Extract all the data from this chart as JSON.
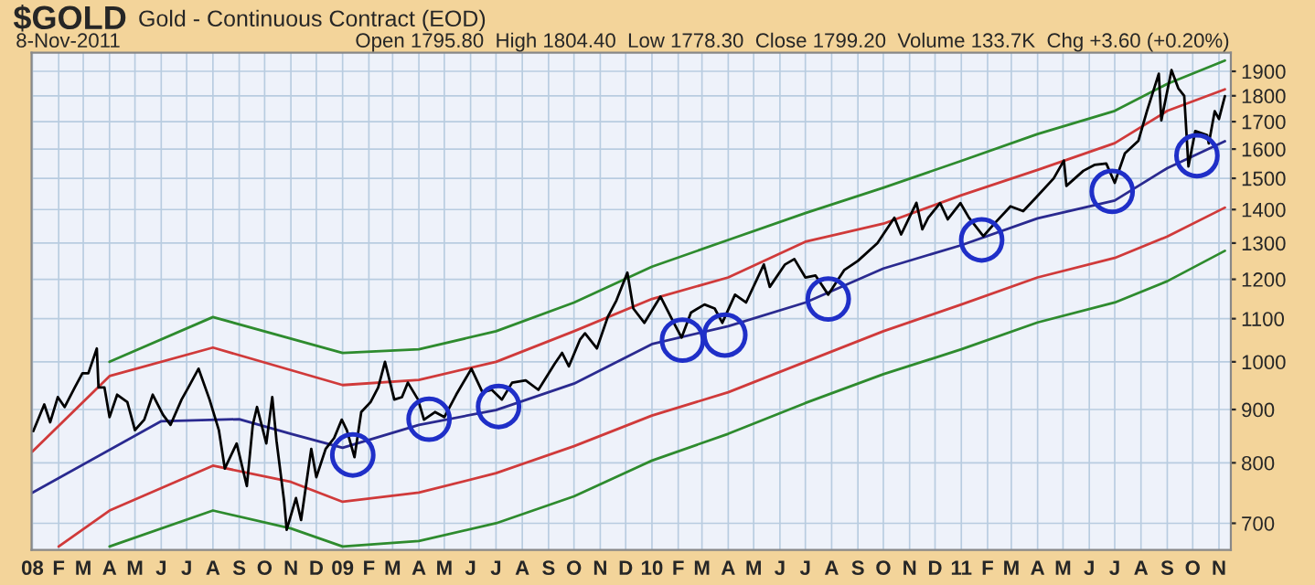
{
  "chart_data": {
    "type": "line",
    "title": "$GOLD",
    "subtitle": "Gold - Continuous Contract (EOD)",
    "annotations": [
      "8-Nov-2011",
      "Open 1795.80  High 1804.40  Low 1778.30  Close 1799.20  Volume 133.7K  Chg +3.60 (+0.20%)"
    ],
    "series": [
      {
        "color": "#2e8b2e",
        "x": [
          "2008-04-01",
          "2008-08-01",
          "2009-01-01",
          "2009-04-01",
          "2009-07-01",
          "2009-10-01",
          "2010-01-01",
          "2010-04-01",
          "2010-07-01",
          "2010-10-01",
          "2011-01-01",
          "2011-04-01",
          "2011-07-01",
          "2011-09-01",
          "2011-11-08"
        ],
        "values": [
          1000,
          1104,
          1020,
          1028,
          1070,
          1140,
          1234,
          1309,
          1389,
          1469,
          1559,
          1654,
          1741,
          1848,
          1946
        ]
      },
      {
        "color": "#d03a3a",
        "x": [
          "2008-01-01",
          "2008-04-01",
          "2008-08-01",
          "2009-01-01",
          "2009-04-01",
          "2009-07-01",
          "2009-10-01",
          "2010-01-01",
          "2010-04-01",
          "2010-07-01",
          "2010-10-01",
          "2011-01-01",
          "2011-04-01",
          "2011-07-01",
          "2011-09-01",
          "2011-11-08"
        ],
        "values": [
          820,
          969,
          1032,
          950,
          961,
          1000,
          1070,
          1149,
          1205,
          1304,
          1357,
          1445,
          1528,
          1621,
          1741,
          1826
        ]
      },
      {
        "color": "#2a2a90",
        "x": [
          "2008-01-01",
          "2008-06-01",
          "2008-09-01",
          "2008-11-01",
          "2009-01-01",
          "2009-04-01",
          "2009-07-01",
          "2009-10-01",
          "2010-01-01",
          "2010-04-01",
          "2010-07-01",
          "2010-10-01",
          "2011-01-01",
          "2011-04-01",
          "2011-07-01",
          "2011-09-01",
          "2011-11-08"
        ],
        "values": [
          749,
          877,
          881,
          853,
          827,
          870,
          899,
          953,
          1040,
          1082,
          1140,
          1229,
          1294,
          1373,
          1428,
          1534,
          1628
        ]
      },
      {
        "color": "#d03a3a",
        "x": [
          "2008-02-01",
          "2008-04-01",
          "2008-08-01",
          "2008-11-01",
          "2009-01-01",
          "2009-04-01",
          "2009-07-01",
          "2009-10-01",
          "2010-01-01",
          "2010-04-01",
          "2010-07-01",
          "2010-10-01",
          "2011-01-01",
          "2011-04-01",
          "2011-07-01",
          "2011-09-01",
          "2011-11-08"
        ],
        "values": [
          665,
          720,
          795,
          767,
          734,
          749,
          782,
          830,
          888,
          935,
          1000,
          1070,
          1135,
          1205,
          1258,
          1319,
          1406
        ]
      },
      {
        "color": "#2e8b2e",
        "x": [
          "2008-04-01",
          "2008-08-01",
          "2008-11-01",
          "2009-01-01",
          "2009-04-01",
          "2009-07-01",
          "2009-10-01",
          "2010-01-01",
          "2010-04-01",
          "2010-07-01",
          "2010-10-01",
          "2011-01-01",
          "2011-04-01",
          "2011-07-01",
          "2011-09-01",
          "2011-11-08"
        ],
        "values": [
          665,
          720,
          692,
          665,
          673,
          700,
          743,
          804,
          853,
          913,
          973,
          1028,
          1091,
          1140,
          1195,
          1278
        ]
      },
      {
        "color": "#000000",
        "x": [
          "2008-01-02",
          "2008-01-15",
          "2008-01-22",
          "2008-01-31",
          "2008-02-08",
          "2008-02-20",
          "2008-02-29",
          "2008-03-07",
          "2008-03-17",
          "2008-03-19",
          "2008-03-26",
          "2008-04-01",
          "2008-04-10",
          "2008-04-22",
          "2008-05-01",
          "2008-05-12",
          "2008-05-22",
          "2008-06-03",
          "2008-06-12",
          "2008-06-25",
          "2008-07-03",
          "2008-07-15",
          "2008-07-28",
          "2008-08-08",
          "2008-08-15",
          "2008-08-29",
          "2008-09-10",
          "2008-09-17",
          "2008-09-22",
          "2008-10-03",
          "2008-10-10",
          "2008-10-15",
          "2008-10-24",
          "2008-10-27",
          "2008-11-07",
          "2008-11-13",
          "2008-11-25",
          "2008-12-01",
          "2008-12-12",
          "2008-12-22",
          "2008-12-31",
          "2009-01-06",
          "2009-01-15",
          "2009-01-23",
          "2009-02-03",
          "2009-02-12",
          "2009-02-20",
          "2009-03-03",
          "2009-03-12",
          "2009-03-19",
          "2009-03-31",
          "2009-04-07",
          "2009-04-20",
          "2009-05-01",
          "2009-05-15",
          "2009-06-02",
          "2009-06-15",
          "2009-06-26",
          "2009-07-08",
          "2009-07-20",
          "2009-08-05",
          "2009-08-20",
          "2009-09-08",
          "2009-09-17",
          "2009-09-25",
          "2009-10-08",
          "2009-10-14",
          "2009-10-28",
          "2009-11-10",
          "2009-11-20",
          "2009-12-03",
          "2009-12-10",
          "2009-12-23",
          "2010-01-11",
          "2010-01-28",
          "2010-02-05",
          "2010-02-16",
          "2010-03-04",
          "2010-03-16",
          "2010-03-25",
          "2010-04-09",
          "2010-04-22",
          "2010-05-13",
          "2010-05-20",
          "2010-06-07",
          "2010-06-18",
          "2010-07-01",
          "2010-07-13",
          "2010-07-28",
          "2010-08-16",
          "2010-09-01",
          "2010-09-24",
          "2010-10-14",
          "2010-10-22",
          "2010-11-09",
          "2010-11-16",
          "2010-11-23",
          "2010-12-07",
          "2010-12-16",
          "2010-12-31",
          "2011-01-10",
          "2011-01-27",
          "2011-02-10",
          "2011-02-28",
          "2011-03-15",
          "2011-03-31",
          "2011-04-20",
          "2011-05-02",
          "2011-05-05",
          "2011-05-25",
          "2011-06-07",
          "2011-06-21",
          "2011-07-01",
          "2011-07-13",
          "2011-07-29",
          "2011-08-08",
          "2011-08-22",
          "2011-08-25",
          "2011-09-06",
          "2011-09-14",
          "2011-09-21",
          "2011-09-26",
          "2011-10-04",
          "2011-10-18",
          "2011-10-20",
          "2011-10-27",
          "2011-11-01",
          "2011-11-08"
        ],
        "values": [
          858,
          910,
          875,
          925,
          905,
          945,
          975,
          975,
          1030,
          945,
          945,
          885,
          930,
          915,
          860,
          880,
          930,
          890,
          870,
          920,
          945,
          985,
          920,
          860,
          790,
          835,
          760,
          870,
          905,
          835,
          925,
          840,
          735,
          690,
          740,
          705,
          825,
          775,
          825,
          845,
          880,
          860,
          810,
          895,
          915,
          945,
          1000,
          920,
          925,
          955,
          920,
          880,
          895,
          885,
          930,
          985,
          935,
          940,
          920,
          955,
          960,
          940,
          995,
          1020,
          990,
          1050,
          1065,
          1030,
          1105,
          1145,
          1218,
          1125,
          1090,
          1155,
          1085,
          1055,
          1115,
          1135,
          1125,
          1090,
          1160,
          1140,
          1240,
          1180,
          1240,
          1255,
          1205,
          1210,
          1160,
          1225,
          1250,
          1300,
          1375,
          1325,
          1421,
          1340,
          1375,
          1420,
          1370,
          1420,
          1375,
          1320,
          1360,
          1410,
          1395,
          1440,
          1500,
          1560,
          1475,
          1525,
          1545,
          1550,
          1485,
          1585,
          1630,
          1740,
          1890,
          1705,
          1905,
          1830,
          1800,
          1540,
          1665,
          1650,
          1620,
          1740,
          1710,
          1799
        ]
      },
      {
        "type": "scatter",
        "marker": "circle",
        "color": "#1f2fc8",
        "x": [
          "2009-01-13",
          "2009-04-13",
          "2009-07-04",
          "2010-02-06",
          "2010-03-28",
          "2010-07-28",
          "2011-01-25",
          "2011-06-28",
          "2011-10-06"
        ],
        "values": [
          814,
          881,
          906,
          1049,
          1061,
          1149,
          1309,
          1457,
          1577
        ]
      }
    ],
    "log": "y",
    "ylim": [
      660,
      1980
    ],
    "yticks": [
      700,
      800,
      900,
      1000,
      1100,
      1200,
      1300,
      1400,
      1500,
      1600,
      1700,
      1800,
      1900
    ],
    "xlim": [
      "2007-12-31",
      "2011-11-15"
    ],
    "xticks": [
      {
        "value": "2008-01",
        "label": "08"
      },
      {
        "value": "2008-02",
        "label": "F"
      },
      {
        "value": "2008-03",
        "label": "M"
      },
      {
        "value": "2008-04",
        "label": "A"
      },
      {
        "value": "2008-05",
        "label": "M"
      },
      {
        "value": "2008-06",
        "label": "J"
      },
      {
        "value": "2008-07",
        "label": "J"
      },
      {
        "value": "2008-08",
        "label": "A"
      },
      {
        "value": "2008-09",
        "label": "S"
      },
      {
        "value": "2008-10",
        "label": "O"
      },
      {
        "value": "2008-11",
        "label": "N"
      },
      {
        "value": "2008-12",
        "label": "D"
      },
      {
        "value": "2009-01",
        "label": "09"
      },
      {
        "value": "2009-02",
        "label": "F"
      },
      {
        "value": "2009-03",
        "label": "M"
      },
      {
        "value": "2009-04",
        "label": "A"
      },
      {
        "value": "2009-05",
        "label": "M"
      },
      {
        "value": "2009-06",
        "label": "J"
      },
      {
        "value": "2009-07",
        "label": "J"
      },
      {
        "value": "2009-08",
        "label": "A"
      },
      {
        "value": "2009-09",
        "label": "S"
      },
      {
        "value": "2009-10",
        "label": "O"
      },
      {
        "value": "2009-11",
        "label": "N"
      },
      {
        "value": "2009-12",
        "label": "D"
      },
      {
        "value": "2010-01",
        "label": "10"
      },
      {
        "value": "2010-02",
        "label": "F"
      },
      {
        "value": "2010-03",
        "label": "M"
      },
      {
        "value": "2010-04",
        "label": "A"
      },
      {
        "value": "2010-05",
        "label": "M"
      },
      {
        "value": "2010-06",
        "label": "J"
      },
      {
        "value": "2010-07",
        "label": "J"
      },
      {
        "value": "2010-08",
        "label": "A"
      },
      {
        "value": "2010-09",
        "label": "S"
      },
      {
        "value": "2010-10",
        "label": "O"
      },
      {
        "value": "2010-11",
        "label": "N"
      },
      {
        "value": "2010-12",
        "label": "D"
      },
      {
        "value": "2011-01",
        "label": "11"
      },
      {
        "value": "2011-02",
        "label": "F"
      },
      {
        "value": "2011-03",
        "label": "M"
      },
      {
        "value": "2011-04",
        "label": "A"
      },
      {
        "value": "2011-05",
        "label": "M"
      },
      {
        "value": "2011-06",
        "label": "J"
      },
      {
        "value": "2011-07",
        "label": "J"
      },
      {
        "value": "2011-08",
        "label": "A"
      },
      {
        "value": "2011-09",
        "label": "S"
      },
      {
        "value": "2011-10",
        "label": "O"
      },
      {
        "value": "2011-11",
        "label": "N"
      }
    ],
    "grid": true,
    "marker": "none",
    "line_style": "solid"
  }
}
